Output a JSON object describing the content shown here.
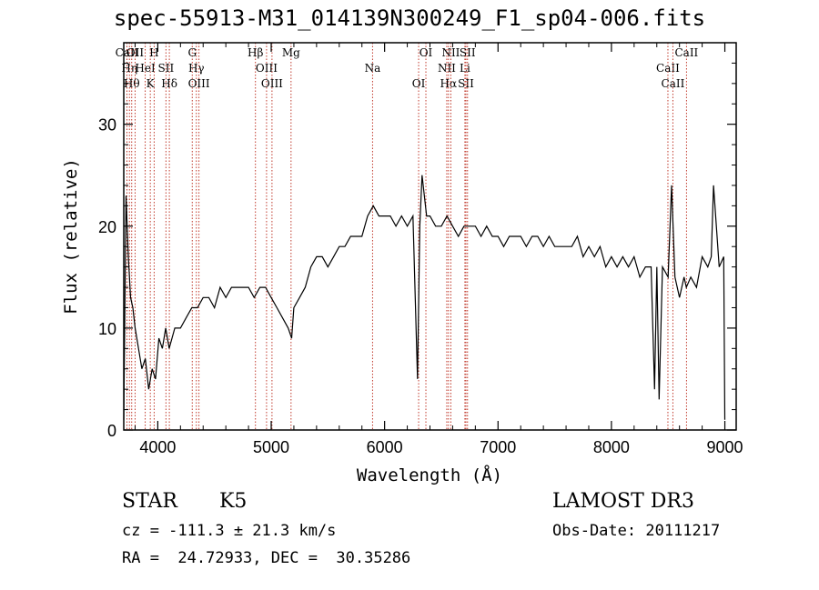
{
  "header": {
    "title": "spec-55913-M31_014139N300249_F1_sp04-006.fits"
  },
  "info": {
    "class": "STAR",
    "subclass": "K5",
    "survey": "LAMOST DR3",
    "cz": "cz = -111.3 ± 21.3 km/s",
    "obs_date": "Obs-Date: 20111217",
    "coords": "RA =  24.72933, DEC =  30.35286"
  },
  "colors": {
    "line_markers": "#c0392b",
    "spectrum": "#000000"
  },
  "chart_data": {
    "type": "line",
    "title": "spec-55913-M31_014139N300249_F1_sp04-006.fits",
    "xlabel": "Wavelength (Å)",
    "ylabel": "Flux (relative)",
    "xlim": [
      3700,
      9100
    ],
    "ylim": [
      0,
      38
    ],
    "xticks": [
      4000,
      5000,
      6000,
      7000,
      8000,
      9000
    ],
    "yticks": [
      0,
      10,
      20,
      30
    ],
    "series": [
      {
        "name": "flux",
        "x": [
          3700,
          3720,
          3740,
          3760,
          3780,
          3800,
          3830,
          3860,
          3890,
          3920,
          3950,
          3980,
          4010,
          4040,
          4070,
          4100,
          4150,
          4200,
          4250,
          4300,
          4350,
          4400,
          4450,
          4500,
          4550,
          4600,
          4650,
          4700,
          4750,
          4800,
          4850,
          4900,
          4950,
          5000,
          5050,
          5100,
          5150,
          5180,
          5200,
          5250,
          5300,
          5350,
          5400,
          5450,
          5500,
          5550,
          5600,
          5650,
          5700,
          5750,
          5800,
          5850,
          5900,
          5950,
          6000,
          6050,
          6100,
          6150,
          6200,
          6250,
          6290,
          6310,
          6330,
          6350,
          6370,
          6400,
          6450,
          6500,
          6550,
          6600,
          6650,
          6700,
          6750,
          6800,
          6850,
          6900,
          6950,
          7000,
          7050,
          7100,
          7150,
          7200,
          7250,
          7300,
          7350,
          7400,
          7450,
          7500,
          7550,
          7600,
          7650,
          7700,
          7750,
          7800,
          7850,
          7900,
          7950,
          8000,
          8050,
          8100,
          8150,
          8200,
          8250,
          8300,
          8350,
          8380,
          8400,
          8420,
          8450,
          8500,
          8530,
          8560,
          8600,
          8640,
          8660,
          8700,
          8750,
          8800,
          8850,
          8880,
          8900,
          8950,
          8990,
          9000
        ],
        "y": [
          1,
          23,
          17,
          13,
          12,
          10,
          8,
          6,
          7,
          4,
          6,
          5,
          9,
          8,
          10,
          8,
          10,
          10,
          11,
          12,
          12,
          13,
          13,
          12,
          14,
          13,
          14,
          14,
          14,
          14,
          13,
          14,
          14,
          13,
          12,
          11,
          10,
          9,
          12,
          13,
          14,
          16,
          17,
          17,
          16,
          17,
          18,
          18,
          19,
          19,
          19,
          21,
          22,
          21,
          21,
          21,
          20,
          21,
          20,
          21,
          5,
          20,
          25,
          23,
          21,
          21,
          20,
          20,
          21,
          20,
          19,
          20,
          20,
          20,
          19,
          20,
          19,
          19,
          18,
          19,
          19,
          19,
          18,
          19,
          19,
          18,
          19,
          18,
          18,
          18,
          18,
          19,
          17,
          18,
          17,
          18,
          16,
          17,
          16,
          17,
          16,
          17,
          15,
          16,
          16,
          4,
          16,
          3,
          16,
          15,
          24,
          15,
          13,
          15,
          14,
          15,
          14,
          17,
          16,
          17,
          24,
          16,
          17,
          1
        ]
      }
    ],
    "line_markers": [
      {
        "label": "CaII",
        "x": 3728
      },
      {
        "label": "Hη",
        "x": 3750
      },
      {
        "label": "Hθ",
        "x": 3770
      },
      {
        "label": "OII",
        "x": 3800
      },
      {
        "label": "HeI",
        "x": 3889
      },
      {
        "label": "K",
        "x": 3934
      },
      {
        "label": "H",
        "x": 3968
      },
      {
        "label": "SII",
        "x": 4072
      },
      {
        "label": "Hδ",
        "x": 4102
      },
      {
        "label": "G",
        "x": 4304
      },
      {
        "label": "Hγ",
        "x": 4340
      },
      {
        "label": "OIII",
        "x": 4363
      },
      {
        "label": "Hβ",
        "x": 4861
      },
      {
        "label": "OIII",
        "x": 4959
      },
      {
        "label": "OIII",
        "x": 5007
      },
      {
        "label": "Mg",
        "x": 5175
      },
      {
        "label": "Na",
        "x": 5894
      },
      {
        "label": "OI",
        "x": 6300
      },
      {
        "label": "OI",
        "x": 6364
      },
      {
        "label": "NII",
        "x": 6548
      },
      {
        "label": "Hα",
        "x": 6563
      },
      {
        "label": "NII",
        "x": 6584
      },
      {
        "label": "Li",
        "x": 6708
      },
      {
        "label": "SII",
        "x": 6717
      },
      {
        "label": "SII",
        "x": 6731
      },
      {
        "label": "CaII",
        "x": 8498
      },
      {
        "label": "CaII",
        "x": 8542
      },
      {
        "label": "CaII",
        "x": 8662
      }
    ]
  }
}
